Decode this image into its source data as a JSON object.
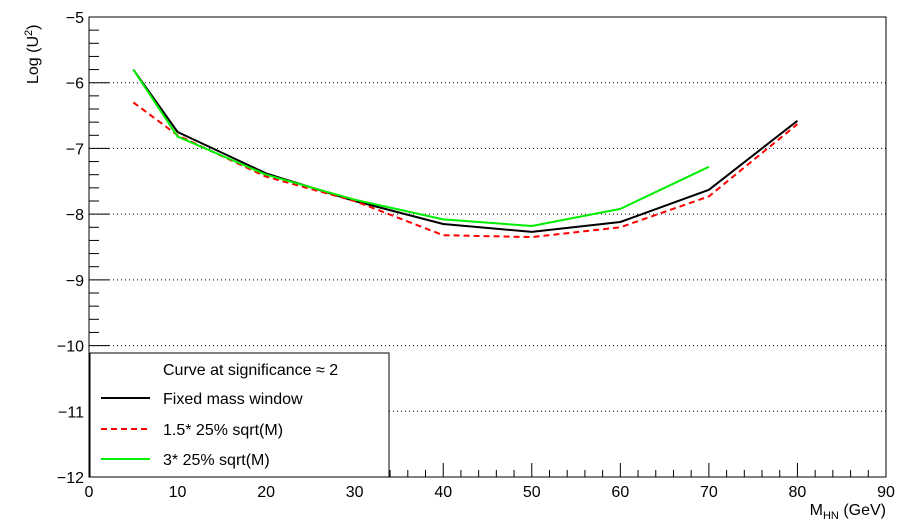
{
  "chart_data": {
    "type": "line",
    "title": "",
    "xlabel": "M",
    "xlabel_sub": "HN",
    "xlabel_unit": " (GeV)",
    "ylabel": "Log (U",
    "ylabel_sup": "2",
    "ylabel_close": ")",
    "xlim": [
      0,
      90
    ],
    "ylim": [
      -12,
      -5
    ],
    "x_ticks": [
      0,
      10,
      20,
      30,
      40,
      50,
      60,
      70,
      80,
      90
    ],
    "x_tick_labels": [
      "0",
      "10",
      "20",
      "30",
      "40",
      "50",
      "60",
      "70",
      "80",
      "90"
    ],
    "y_ticks": [
      -12,
      -11,
      -10,
      -9,
      -8,
      -7,
      -6,
      -5
    ],
    "y_tick_labels": [
      "−12",
      "−11",
      "−10",
      "−9",
      "−8",
      "−7",
      "−6",
      "−5"
    ],
    "grid": "horizontal dotted",
    "legend_position": "bottom-left",
    "legend_header": "Curve at significance ≈ 2",
    "series": [
      {
        "name": "Fixed mass window",
        "color": "#000000",
        "dash": "solid",
        "x": [
          5,
          10,
          20,
          30,
          40,
          50,
          60,
          70,
          80
        ],
        "y": [
          -5.8,
          -6.75,
          -7.38,
          -7.8,
          -8.15,
          -8.27,
          -8.12,
          -7.63,
          -6.58
        ]
      },
      {
        "name": "1.5* 25% sqrt(M)",
        "color": "#ff0000",
        "dash": "dashed",
        "x": [
          5,
          10,
          20,
          30,
          40,
          50,
          60,
          70,
          80
        ],
        "y": [
          -6.3,
          -6.8,
          -7.43,
          -7.8,
          -8.32,
          -8.35,
          -8.2,
          -7.73,
          -6.63
        ]
      },
      {
        "name": "3* 25% sqrt(M)",
        "color": "#00ee00",
        "dash": "solid",
        "x": [
          5,
          10,
          20,
          30,
          40,
          50,
          60,
          70
        ],
        "y": [
          -5.8,
          -6.82,
          -7.4,
          -7.78,
          -8.08,
          -8.18,
          -7.92,
          -7.28
        ]
      }
    ]
  }
}
